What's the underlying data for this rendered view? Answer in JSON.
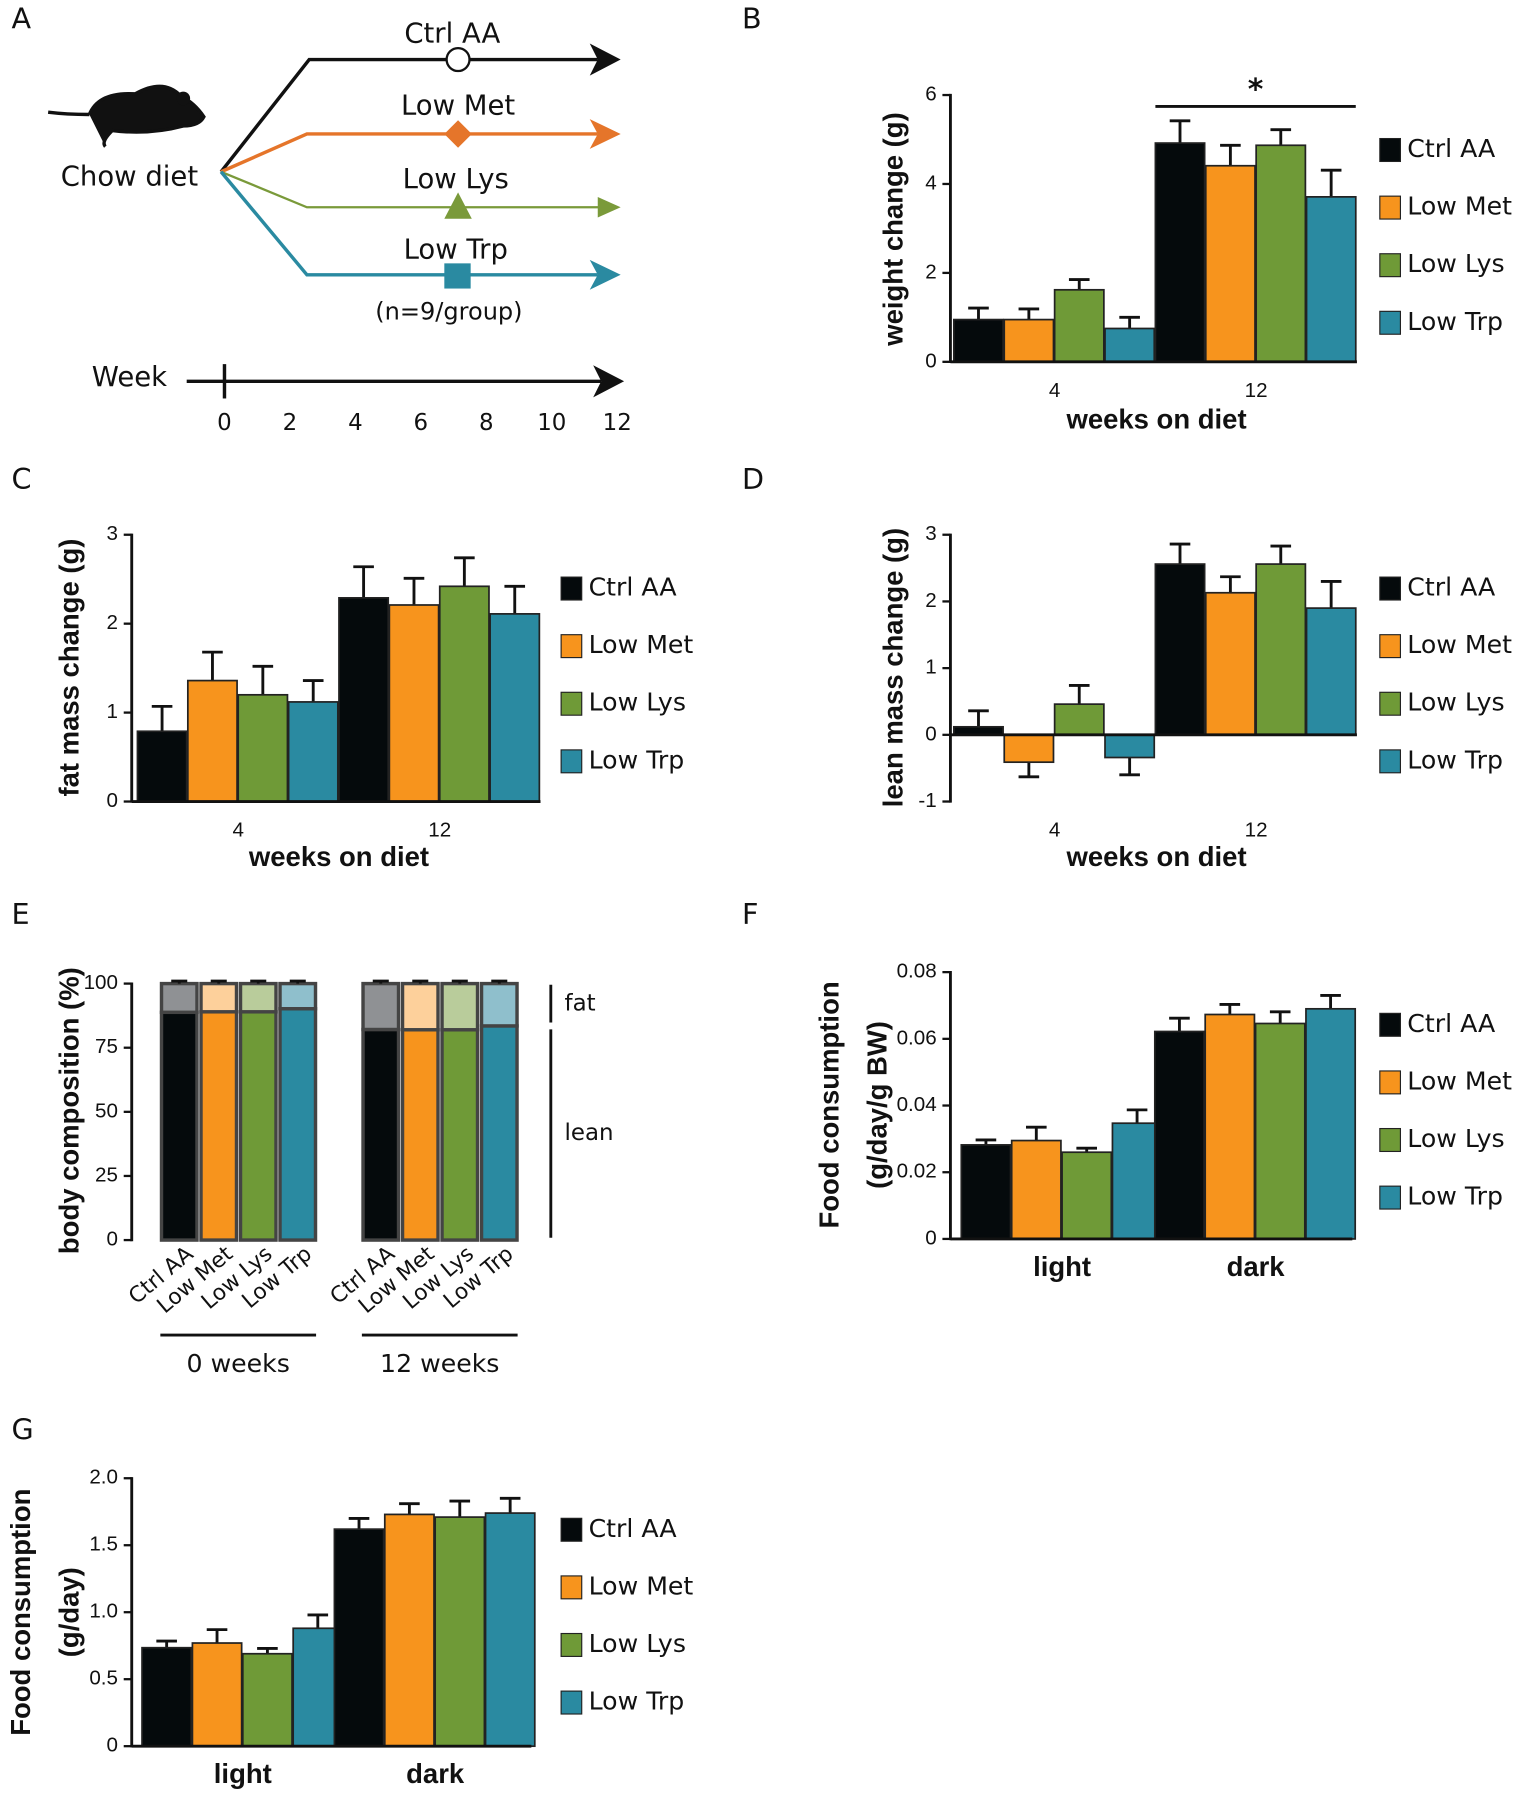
{
  "diagram": {
    "panel": "A",
    "start": "Chow diet",
    "branches": [
      "Ctrl AA",
      "Low Met",
      "Low Lys",
      "Low Trp"
    ],
    "note": "(n=9/group)",
    "axis_label": "Week",
    "ticks": [
      0,
      2,
      4,
      6,
      8,
      10,
      12
    ]
  },
  "chart_data": [
    {
      "type": "bar",
      "panel": "B",
      "ylabel": [
        "weight change (g)"
      ],
      "xlabel": "weeks on diet",
      "categories": [
        "4",
        "12"
      ],
      "ylim": [
        0,
        6
      ],
      "yticks": [
        0,
        2,
        4,
        6
      ],
      "annotation": "*",
      "series": [
        {
          "name": "Ctrl AA",
          "color": "#050a0c",
          "values": [
            0.95,
            4.92
          ],
          "errors": [
            0.26,
            0.5
          ]
        },
        {
          "name": "Low Met",
          "color": "#f7941d",
          "values": [
            0.95,
            4.41
          ],
          "errors": [
            0.24,
            0.46
          ]
        },
        {
          "name": "Low Lys",
          "color": "#6f9a37",
          "values": [
            1.62,
            4.87
          ],
          "errors": [
            0.23,
            0.35
          ]
        },
        {
          "name": "Low Trp",
          "color": "#2a8aa1",
          "values": [
            0.75,
            3.71
          ],
          "errors": [
            0.25,
            0.6
          ]
        }
      ]
    },
    {
      "type": "bar",
      "panel": "C",
      "ylabel": [
        "fat mass change (g)"
      ],
      "xlabel": "weeks on diet",
      "categories": [
        "4",
        "12"
      ],
      "ylim": [
        0,
        3
      ],
      "yticks": [
        0,
        1,
        2,
        3
      ],
      "series": [
        {
          "name": "Ctrl AA",
          "color": "#050a0c",
          "values": [
            0.79,
            2.29
          ],
          "errors": [
            0.28,
            0.35
          ]
        },
        {
          "name": "Low Met",
          "color": "#f7941d",
          "values": [
            1.36,
            2.21
          ],
          "errors": [
            0.32,
            0.3
          ]
        },
        {
          "name": "Low Lys",
          "color": "#6f9a37",
          "values": [
            1.2,
            2.42
          ],
          "errors": [
            0.32,
            0.32
          ]
        },
        {
          "name": "Low Trp",
          "color": "#2a8aa1",
          "values": [
            1.12,
            2.11
          ],
          "errors": [
            0.24,
            0.31
          ]
        }
      ]
    },
    {
      "type": "bar",
      "panel": "D",
      "ylabel": [
        "lean mass change (g)"
      ],
      "xlabel": "weeks on diet",
      "categories": [
        "4",
        "12"
      ],
      "ylim": [
        -1,
        3
      ],
      "yticks": [
        -1,
        0,
        1,
        2,
        3
      ],
      "series": [
        {
          "name": "Ctrl AA",
          "color": "#050a0c",
          "values": [
            0.12,
            2.56
          ],
          "errors": [
            0.24,
            0.3
          ]
        },
        {
          "name": "Low Met",
          "color": "#f7941d",
          "values": [
            -0.41,
            2.13
          ],
          "errors": [
            0.22,
            0.24
          ]
        },
        {
          "name": "Low Lys",
          "color": "#6f9a37",
          "values": [
            0.46,
            2.56
          ],
          "errors": [
            0.28,
            0.27
          ]
        },
        {
          "name": "Low Trp",
          "color": "#2a8aa1",
          "values": [
            -0.34,
            1.9
          ],
          "errors": [
            0.26,
            0.4
          ]
        }
      ]
    },
    {
      "type": "stacked",
      "panel": "E",
      "ylabel": [
        "body composition (%)"
      ],
      "categories": [
        "Ctrl AA",
        "Low Met",
        "Low Lys",
        "Low Trp",
        "Ctrl AA",
        "Low Met",
        "Low Lys",
        "Low Trp"
      ],
      "groups": [
        "0 weeks",
        "12 weeks"
      ],
      "ylim": [
        0,
        100
      ],
      "yticks": [
        0,
        25,
        50,
        75,
        100
      ],
      "series": [
        {
          "name": "lean",
          "colors": [
            "#050a0c",
            "#f7941d",
            "#6f9a37",
            "#2a8aa1",
            "#050a0c",
            "#f7941d",
            "#6f9a37",
            "#2a8aa1"
          ],
          "values": [
            88.8,
            89,
            89,
            90.2,
            82.1,
            82,
            82,
            83.5
          ],
          "errors": [
            1,
            1,
            1,
            1,
            1,
            1,
            1,
            1
          ]
        },
        {
          "name": "fat",
          "colors": [
            "#8f9194",
            "#fdd09b",
            "#b9cc9b",
            "#8fbfcc",
            "#8f9194",
            "#fdd09b",
            "#b9cc9b",
            "#8fbfcc"
          ],
          "values": [
            11.2,
            11,
            11,
            9.8,
            17.9,
            18,
            18,
            16.5
          ],
          "errors": [
            1,
            1,
            1,
            1,
            1,
            1,
            1,
            1
          ]
        }
      ]
    },
    {
      "type": "bar",
      "panel": "F",
      "ylabel": [
        "Food consumption",
        "(g/day/g BW)"
      ],
      "categories": [
        "light",
        "dark"
      ],
      "ylim": [
        0,
        0.08
      ],
      "yticks": [
        0,
        0.02,
        0.04,
        0.06,
        0.08
      ],
      "series": [
        {
          "name": "Ctrl AA",
          "color": "#050a0c",
          "values": [
            0.0282,
            0.0622
          ],
          "errors": [
            0.0015,
            0.004
          ]
        },
        {
          "name": "Low Met",
          "color": "#f7941d",
          "values": [
            0.0295,
            0.0673
          ],
          "errors": [
            0.004,
            0.003
          ]
        },
        {
          "name": "Low Lys",
          "color": "#6f9a37",
          "values": [
            0.026,
            0.0646
          ],
          "errors": [
            0.0012,
            0.0035
          ]
        },
        {
          "name": "Low Trp",
          "color": "#2a8aa1",
          "values": [
            0.0347,
            0.069
          ],
          "errors": [
            0.004,
            0.004
          ]
        }
      ]
    },
    {
      "type": "bar",
      "panel": "G",
      "ylabel": [
        "Food consumption",
        "(g/day)"
      ],
      "categories": [
        "light",
        "dark"
      ],
      "ylim": [
        0,
        2
      ],
      "yticks": [
        0,
        0.5,
        {
          "value": 1,
          "label": "1.0"
        },
        1.5,
        {
          "value": 2,
          "label": "2.0"
        }
      ],
      "series": [
        {
          "name": "Ctrl AA",
          "color": "#050a0c",
          "values": [
            0.735,
            1.62
          ],
          "errors": [
            0.05,
            0.08
          ]
        },
        {
          "name": "Low Met",
          "color": "#f7941d",
          "values": [
            0.77,
            1.73
          ],
          "errors": [
            0.1,
            0.08
          ]
        },
        {
          "name": "Low Lys",
          "color": "#6f9a37",
          "values": [
            0.69,
            1.71
          ],
          "errors": [
            0.04,
            0.12
          ]
        },
        {
          "name": "Low Trp",
          "color": "#2a8aa1",
          "values": [
            0.88,
            1.74
          ],
          "errors": [
            0.1,
            0.11
          ]
        }
      ]
    }
  ]
}
